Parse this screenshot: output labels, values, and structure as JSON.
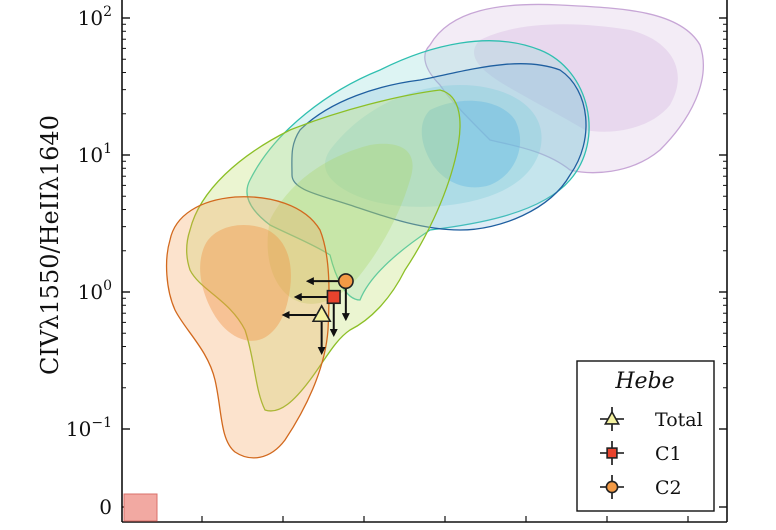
{
  "chart_data": {
    "type": "scatter",
    "title": "",
    "xlabel": "",
    "ylabel": "CIVλ1550/HeIIλ1640",
    "yscale": "log",
    "ylim": [
      0.025,
      200
    ],
    "xlim": [
      0,
      1
    ],
    "y_ticks": [
      {
        "base": "10",
        "exp": "2",
        "value": 100
      },
      {
        "base": "10",
        "exp": "1",
        "value": 10
      },
      {
        "base": "10",
        "exp": "0",
        "value": 1
      },
      {
        "base": "10",
        "exp": "−1",
        "value": 0.1
      },
      {
        "base": "0",
        "exp": "",
        "value": 0.03
      }
    ],
    "colors": {
      "orange_region": "#f4a15a",
      "orange_outline": "#d2691e",
      "green_region": "#c5e17a",
      "green_outline": "#8cbf26",
      "teal_region": "#8fdcd8",
      "teal_outline": "#2fbfb0",
      "blue_region": "#7fb7dc",
      "blue_outline": "#1f5fa0",
      "violet_region": "#ddc8e6",
      "violet_outline": "#c7a6d6",
      "total": "#f4f2a0",
      "c1": "#e8432d",
      "c2": "#f39a45",
      "corner_box": "#f2a9a2"
    },
    "series": [
      {
        "name": "Total",
        "marker": "triangle",
        "x": 0.33,
        "y": 0.68,
        "upper_limit": true
      },
      {
        "name": "C1",
        "marker": "square",
        "x": 0.35,
        "y": 0.92,
        "upper_limit": true
      },
      {
        "name": "C2",
        "marker": "circle",
        "x": 0.37,
        "y": 1.2,
        "upper_limit": true
      }
    ],
    "legend": {
      "title": "Hebe",
      "placement": "lower-right",
      "entries": [
        "Total",
        "C1",
        "C2"
      ]
    }
  }
}
